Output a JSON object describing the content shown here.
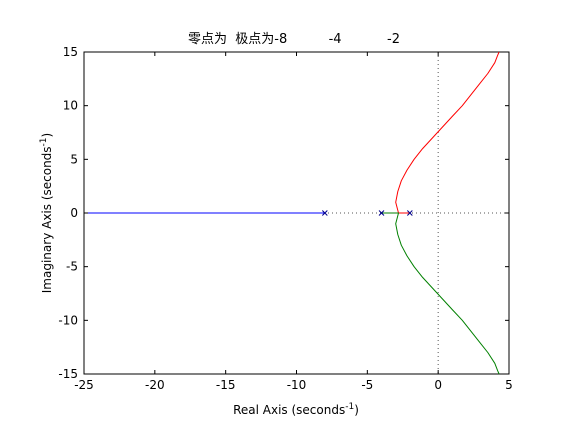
{
  "chart_data": {
    "type": "line",
    "title": "零点为  极点为-8          -4           -2",
    "xlabel": "Real Axis (seconds",
    "ylabel": "Imaginary Axis (seconds",
    "axis_unit_exponent": "-1",
    "xlim": [
      -25,
      5
    ],
    "ylim": [
      -15,
      15
    ],
    "x_ticks": [
      -25,
      -20,
      -15,
      -10,
      -5,
      0,
      5
    ],
    "y_ticks": [
      -15,
      -10,
      -5,
      0,
      5,
      10,
      15
    ],
    "x_tick_labels": [
      "-25",
      "-20",
      "-15",
      "-10",
      "-5",
      "0",
      "5"
    ],
    "y_tick_labels": [
      "-15",
      "-10",
      "-5",
      "0",
      "5",
      "10",
      "15"
    ],
    "grid": false,
    "reference_lines": {
      "x": 0,
      "y": 0,
      "style": "dotted",
      "color": "#555555"
    },
    "poles": [
      {
        "x": -8,
        "y": 0
      },
      {
        "x": -4,
        "y": 0
      },
      {
        "x": -2,
        "y": 0
      }
    ],
    "series": [
      {
        "color": "#0000ff",
        "points": [
          [
            -8,
            0
          ],
          [
            -25,
            0
          ]
        ]
      },
      {
        "color": "#ff0000",
        "points": [
          [
            -2,
            0
          ],
          [
            -2.8,
            0
          ],
          [
            -3.0,
            1
          ],
          [
            -2.85,
            2
          ],
          [
            -2.6,
            3
          ],
          [
            -2.2,
            4
          ],
          [
            -1.7,
            5
          ],
          [
            -1.1,
            6
          ],
          [
            -0.4,
            7
          ],
          [
            0.3,
            8
          ],
          [
            1.0,
            9
          ],
          [
            1.7,
            10
          ],
          [
            2.3,
            11
          ],
          [
            2.9,
            12
          ],
          [
            3.5,
            13
          ],
          [
            4.0,
            14
          ],
          [
            4.2,
            14.7
          ],
          [
            4.3,
            15
          ]
        ]
      },
      {
        "color": "#008000",
        "points": [
          [
            -4,
            0
          ],
          [
            -2.8,
            0
          ],
          [
            -3.0,
            -1
          ],
          [
            -2.85,
            -2
          ],
          [
            -2.6,
            -3
          ],
          [
            -2.2,
            -4
          ],
          [
            -1.7,
            -5
          ],
          [
            -1.1,
            -6
          ],
          [
            -0.4,
            -7
          ],
          [
            0.3,
            -8
          ],
          [
            1.0,
            -9
          ],
          [
            1.7,
            -10
          ],
          [
            2.3,
            -11
          ],
          [
            2.9,
            -12
          ],
          [
            3.5,
            -13
          ],
          [
            4.0,
            -14
          ],
          [
            4.2,
            -14.7
          ],
          [
            4.3,
            -15
          ]
        ]
      }
    ]
  },
  "colors": {
    "axis": "#000000",
    "reference": "#555555",
    "pole_marker": "#00008b"
  }
}
